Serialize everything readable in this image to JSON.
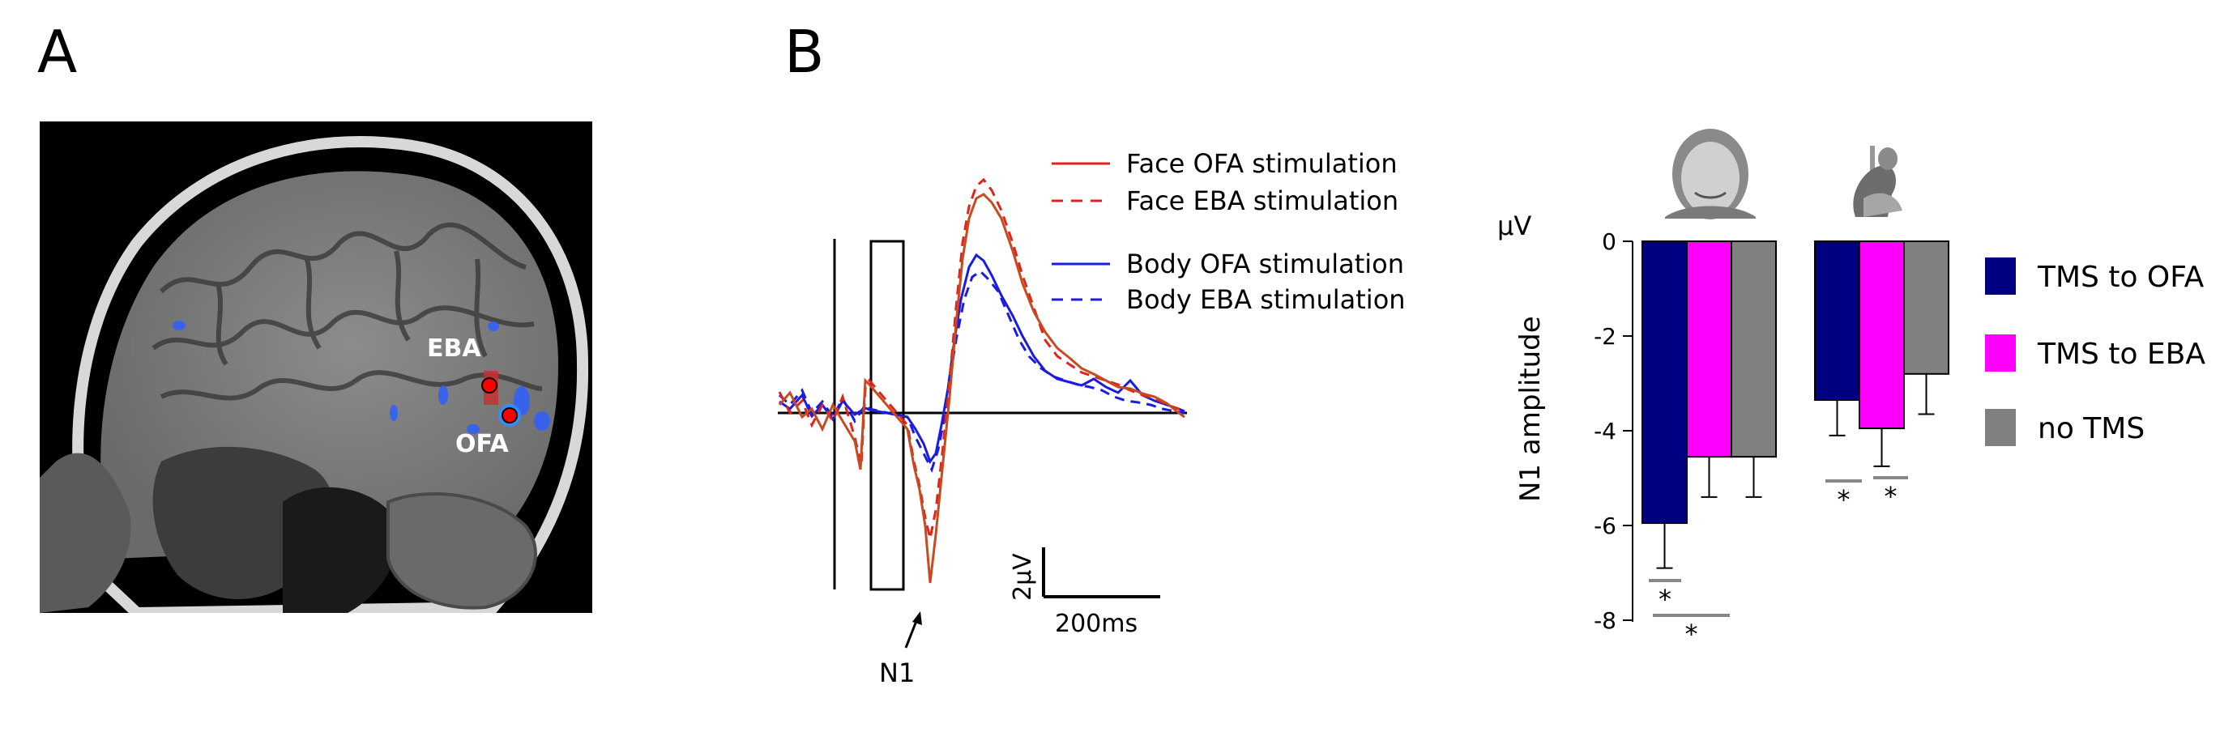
{
  "panels": {
    "a": "A",
    "b": "B"
  },
  "brain": {
    "labels": {
      "eba": "EBA",
      "ofa": "OFA"
    }
  },
  "erp": {
    "legend": [
      {
        "label": "Face OFA stimulation",
        "color": "#e0231c",
        "dash": false
      },
      {
        "label": "Face EBA stimulation",
        "color": "#e0231c",
        "dash": true
      },
      {
        "label": "Body OFA stimulation",
        "color": "#1c1ce0",
        "dash": false
      },
      {
        "label": "Body EBA stimulation",
        "color": "#1c1ce0",
        "dash": true
      }
    ],
    "scale_voltage": "2µV",
    "scale_time": "200ms",
    "component_label": "N1"
  },
  "chart_data": {
    "type": "bar",
    "ylabel": "N1 amplitude",
    "unit_label": "µV",
    "ylim": [
      -8,
      0
    ],
    "yticks": [
      "0",
      "-2",
      "-4",
      "-6",
      "-8"
    ],
    "categories": [
      "Face",
      "Body"
    ],
    "series": [
      {
        "name": "TMS to OFA",
        "color": "#000080",
        "values": [
          -5.95,
          -3.35
        ],
        "errors": [
          0.95,
          0.75
        ]
      },
      {
        "name": "TMS to EBA",
        "color": "#ff00ff",
        "values": [
          -4.55,
          -3.95
        ],
        "errors": [
          0.85,
          0.8
        ]
      },
      {
        "name": "no TMS",
        "color": "#808080",
        "values": [
          -4.55,
          -2.8
        ],
        "errors": [
          0.85,
          0.85
        ]
      }
    ],
    "significance": [
      {
        "category": 0,
        "from": 0,
        "to": 1,
        "label": "*"
      },
      {
        "category": 0,
        "from": 0,
        "to": 2,
        "label": "*"
      },
      {
        "category": 1,
        "from": 0,
        "to": 1,
        "label": "*"
      },
      {
        "category": 1,
        "from": 1,
        "to": 2,
        "label": "*"
      }
    ],
    "legend_position": "right"
  }
}
